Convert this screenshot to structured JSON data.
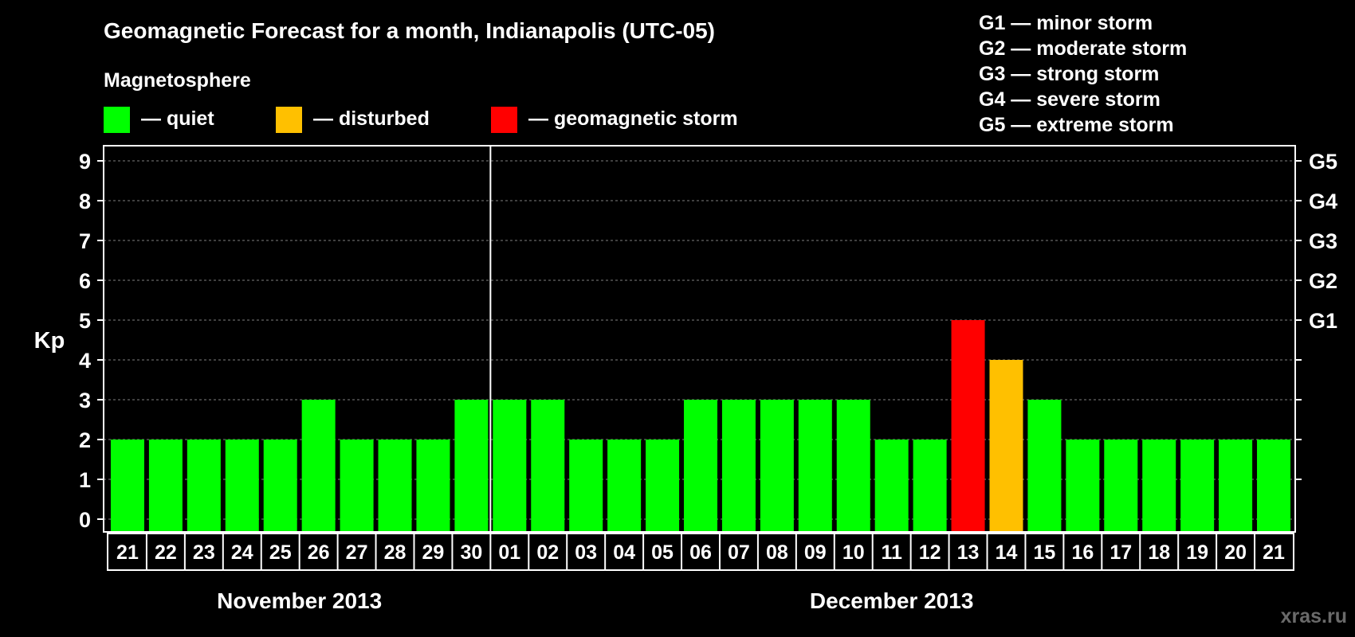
{
  "chart_data": {
    "type": "bar",
    "title": "Geomagnetic Forecast for a month, Indianapolis (UTC-05)",
    "ylabel": "Kp",
    "ylim": [
      0,
      9
    ],
    "yticks": [
      "0",
      "1",
      "2",
      "3",
      "4",
      "5",
      "6",
      "7",
      "8",
      "9"
    ],
    "right_axis": {
      "ticks": [
        {
          "kp": 5,
          "label": "G1"
        },
        {
          "kp": 6,
          "label": "G2"
        },
        {
          "kp": 7,
          "label": "G3"
        },
        {
          "kp": 8,
          "label": "G4"
        },
        {
          "kp": 9,
          "label": "G5"
        }
      ]
    },
    "legend": {
      "heading": "Magnetosphere",
      "items": [
        {
          "label": "— quiet",
          "color": "#00ff00"
        },
        {
          "label": "— disturbed",
          "color": "#ffc000"
        },
        {
          "label": "— geomagnetic storm",
          "color": "#ff0000"
        }
      ]
    },
    "storm_scale": [
      "G1 — minor storm",
      "G2 — moderate storm",
      "G3 — strong storm",
      "G4 — severe storm",
      "G5 — extreme storm"
    ],
    "months": [
      {
        "label": "November 2013",
        "first_index": 0,
        "count": 10
      },
      {
        "label": "December 2013",
        "first_index": 10,
        "count": 21
      }
    ],
    "categories": [
      "21",
      "22",
      "23",
      "24",
      "25",
      "26",
      "27",
      "28",
      "29",
      "30",
      "01",
      "02",
      "03",
      "04",
      "05",
      "06",
      "07",
      "08",
      "09",
      "10",
      "11",
      "12",
      "13",
      "14",
      "15",
      "16",
      "17",
      "18",
      "19",
      "20",
      "21"
    ],
    "values": [
      2,
      2,
      2,
      2,
      2,
      3,
      2,
      2,
      2,
      3,
      3,
      3,
      2,
      2,
      2,
      3,
      3,
      3,
      3,
      3,
      2,
      2,
      5,
      4,
      3,
      2,
      2,
      2,
      2,
      2,
      2
    ],
    "colors": {
      "quiet": "#00ff00",
      "disturbed": "#ffc000",
      "storm": "#ff0000",
      "background": "#000000",
      "frame": "#ffffff",
      "grid": "#7f7f7f"
    },
    "grid": true
  },
  "watermark": "xras.ru"
}
